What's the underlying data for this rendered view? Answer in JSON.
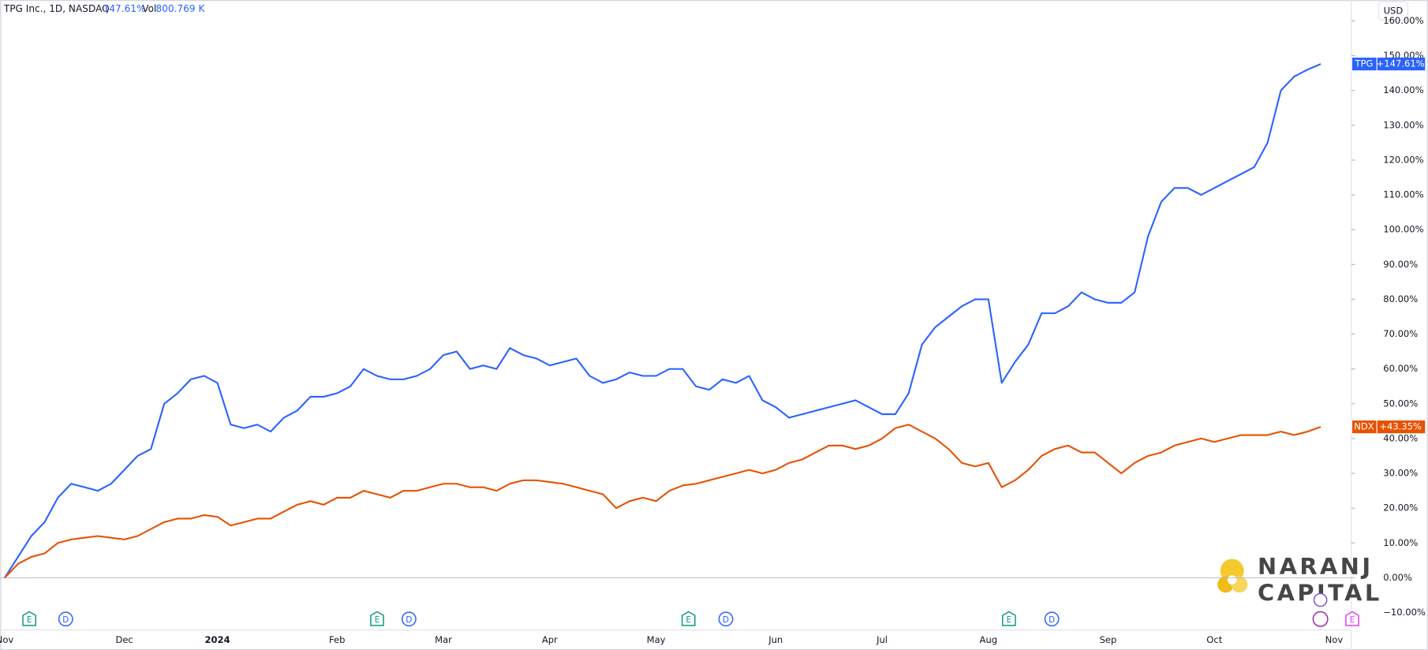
{
  "header": {
    "symbol": "TPG Inc., 1D, NASDAQ",
    "change": "147.61%",
    "vol_label": "Vol",
    "vol_value": "800.769 K",
    "currency": "USD"
  },
  "watermark": {
    "line1": "NARANJ",
    "line2": "CAPITAL"
  },
  "events": [
    "E",
    "D",
    "E",
    "D",
    "E",
    "D",
    "E",
    "D",
    "E"
  ],
  "chart_data": {
    "type": "line",
    "categories": [
      "Nov",
      null,
      null,
      null,
      null,
      null,
      null,
      null,
      null,
      "Dec",
      null,
      null,
      null,
      null,
      null,
      null,
      "2024",
      null,
      null,
      null,
      null,
      null,
      null,
      null,
      null,
      "Feb",
      null,
      null,
      null,
      null,
      null,
      null,
      null,
      "Mar",
      null,
      null,
      null,
      null,
      null,
      null,
      null,
      "Apr",
      null,
      null,
      null,
      null,
      null,
      null,
      null,
      "May",
      null,
      null,
      null,
      null,
      null,
      null,
      null,
      null,
      "Jun",
      null,
      null,
      null,
      null,
      null,
      null,
      null,
      "Jul",
      null,
      null,
      null,
      null,
      null,
      null,
      null,
      "Aug",
      null,
      null,
      null,
      null,
      null,
      null,
      null,
      null,
      "Sep",
      null,
      null,
      null,
      null,
      null,
      null,
      null,
      "Oct",
      null,
      null,
      null,
      null,
      null,
      null,
      null,
      null,
      "Nov"
    ],
    "series": [
      {
        "name": "TPG",
        "color": "#2962ff",
        "last_label": "+147.61%",
        "values": [
          0,
          6,
          12,
          16,
          23,
          27,
          26,
          25,
          27,
          31,
          35,
          37,
          50,
          53,
          57,
          58,
          56,
          44,
          43,
          44,
          42,
          46,
          48,
          52,
          52,
          53,
          55,
          60,
          58,
          57,
          57,
          58,
          60,
          64,
          65,
          60,
          61,
          60,
          66,
          64,
          63,
          61,
          62,
          63,
          58,
          56,
          57,
          59,
          58,
          58,
          60,
          60,
          55,
          54,
          57,
          56,
          58,
          51,
          49,
          46,
          47,
          48,
          49,
          50,
          51,
          49,
          47,
          47,
          53,
          67,
          72,
          75,
          78,
          80,
          80,
          56,
          62,
          67,
          76,
          76,
          78,
          82,
          80,
          79,
          79,
          82,
          98,
          108,
          112,
          112,
          110,
          112,
          114,
          116,
          118,
          125,
          140,
          144,
          146,
          147.61,
          null
        ]
      },
      {
        "name": "NDX",
        "color": "#e65100",
        "last_label": "+43.35%",
        "values": [
          0,
          4,
          6,
          7,
          10,
          11,
          11.5,
          12,
          11.5,
          11,
          12,
          14,
          16,
          17,
          17,
          18,
          17.5,
          15,
          16,
          17,
          17,
          19,
          21,
          22,
          21,
          23,
          23,
          25,
          24,
          23,
          25,
          25,
          26,
          27,
          27,
          26,
          26,
          25,
          27,
          28,
          28,
          27.5,
          27,
          26,
          25,
          24,
          20,
          22,
          23,
          22,
          25,
          26.5,
          27,
          28,
          29,
          30,
          31,
          30,
          31,
          33,
          34,
          36,
          38,
          38,
          37,
          38,
          40,
          43,
          44,
          42,
          40,
          37,
          33,
          32,
          33,
          26,
          28,
          31,
          35,
          37,
          38,
          36,
          36,
          33,
          30,
          33,
          35,
          36,
          38,
          39,
          40,
          39,
          40,
          41,
          41,
          41,
          42,
          41,
          42,
          43.35,
          null
        ]
      }
    ],
    "ylim": [
      -15,
      166
    ],
    "yticks": [
      {
        "value": -10,
        "label": "−10.00%"
      },
      {
        "value": 0,
        "label": "0.00%"
      },
      {
        "value": 10,
        "label": "10.00%"
      },
      {
        "value": 20,
        "label": "20.00%"
      },
      {
        "value": 30,
        "label": "30.00%"
      },
      {
        "value": 40,
        "label": "40.00%"
      },
      {
        "value": 50,
        "label": "50.00%"
      },
      {
        "value": 60,
        "label": "60.00%"
      },
      {
        "value": 70,
        "label": "70.00%"
      },
      {
        "value": 80,
        "label": "80.00%"
      },
      {
        "value": 90,
        "label": "90.00%"
      },
      {
        "value": 100,
        "label": "100.00%"
      },
      {
        "value": 110,
        "label": "110.00%"
      },
      {
        "value": 120,
        "label": "120.00%"
      },
      {
        "value": 130,
        "label": "130.00%"
      },
      {
        "value": 140,
        "label": "140.00%"
      },
      {
        "value": 150,
        "label": "150.00%"
      },
      {
        "value": 160,
        "label": "160.00%"
      }
    ],
    "grid": false
  }
}
